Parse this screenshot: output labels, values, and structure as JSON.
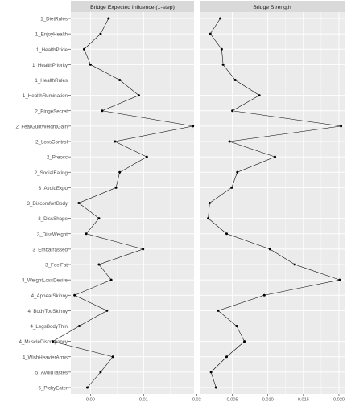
{
  "chart_data": {
    "type": "line",
    "categories": [
      "1_DietRules",
      "1_EnjoyHealth",
      "1_HealthPride",
      "1_HealthPriority",
      "1_HealthRules",
      "1_HealthRumination",
      "2_BingeSecret",
      "2_FearGuiltWeightGain",
      "2_LossControl",
      "2_Preocc",
      "2_SocialEating",
      "3_AvoidExpo",
      "3_DiscomfortBody",
      "3_DissShape",
      "3_DissWeight",
      "3_Embarrassed",
      "3_FeelFat",
      "3_WeightLossDesire",
      "4_AppearSkinny",
      "4_BodyTooSkinny",
      "4_LegsBodyThin",
      "4_MuscleDiscrepancy",
      "4_WishHeavierArms",
      "5_AvoidTastes",
      "5_PickyEater"
    ],
    "panels": [
      {
        "strip_title": "Bridge Expected Influence (1-step)",
        "xlim": [
          -0.0037,
          0.0195
        ],
        "xticks": [
          0.0,
          0.01,
          0.02
        ],
        "xtick_labels": [
          "0.00",
          "0.01",
          "0.02"
        ],
        "values": [
          0.0034,
          0.0019,
          -0.0012,
          0.0,
          0.0055,
          0.0091,
          0.0022,
          0.0193,
          0.0046,
          0.0106,
          0.0055,
          0.0048,
          -0.0022,
          0.0016,
          -0.0008,
          0.0099,
          0.0016,
          0.0039,
          -0.003,
          0.0031,
          -0.0021,
          -0.0071,
          0.0042,
          0.0019,
          -0.0006
        ]
      },
      {
        "strip_title": "Bridge Strength",
        "xlim": [
          0.0004,
          0.0208
        ],
        "xticks": [
          0.005,
          0.01,
          0.015,
          0.02
        ],
        "xtick_labels": [
          "0.005",
          "0.010",
          "0.015",
          "0.020"
        ],
        "values": [
          0.0033,
          0.0019,
          0.0035,
          0.0037,
          0.0054,
          0.0088,
          0.005,
          0.0203,
          0.0046,
          0.011,
          0.0057,
          0.0049,
          0.0018,
          0.0016,
          0.0042,
          0.0103,
          0.0138,
          0.0201,
          0.0095,
          0.003,
          0.0056,
          0.0067,
          0.0042,
          0.002,
          0.0027
        ]
      }
    ],
    "colors": {
      "panel_bg": "#ebebeb",
      "grid": "#ffffff",
      "strip_bg": "#d9d9d9",
      "line": "#000000",
      "text": "#4d4d4d",
      "strip_text": "#1a1a1a"
    },
    "grid": true,
    "legend": "none"
  }
}
